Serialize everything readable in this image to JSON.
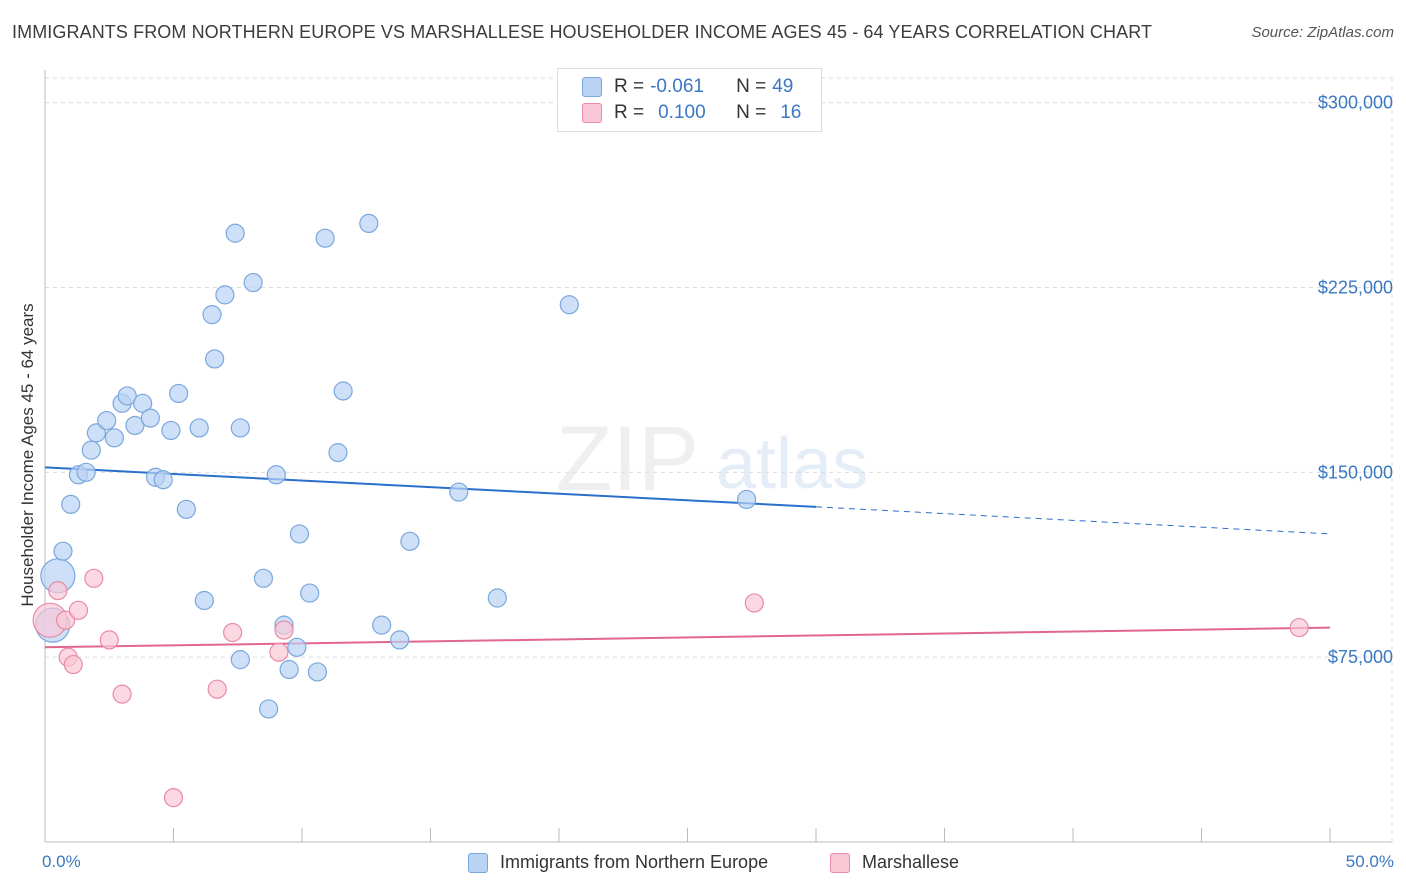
{
  "title": "IMMIGRANTS FROM NORTHERN EUROPE VS MARSHALLESE HOUSEHOLDER INCOME AGES 45 - 64 YEARS CORRELATION CHART",
  "source": "Source: ZipAtlas.com",
  "watermark": {
    "zip": "ZIP",
    "atlas": "atlas"
  },
  "legend_top": [
    {
      "r_label": "R = ",
      "r_value": "-0.061",
      "n_label": "N = ",
      "n_value": "49"
    },
    {
      "r_label": "R = ",
      "r_value": "0.100",
      "n_label": "N = ",
      "n_value": "16"
    }
  ],
  "colors": {
    "blue_fill": "#b9d3f3",
    "blue_stroke": "#7aa7dd",
    "blue_line": "#2a6fc9",
    "pink_fill": "#f9c7d6",
    "pink_stroke": "#e98aa8",
    "pink_line": "#e0668f",
    "axis_label": "#3b78c3",
    "grid": "#dcdcdc"
  },
  "chart_data": {
    "type": "scatter",
    "title": "IMMIGRANTS FROM NORTHERN EUROPE VS MARSHALLESE HOUSEHOLDER INCOME AGES 45 - 64 YEARS CORRELATION CHART",
    "xlabel": "",
    "ylabel": "Householder Income Ages 45 - 64 years",
    "xlim": [
      0,
      50
    ],
    "ylim": [
      0,
      310000
    ],
    "x_tick_labels": [
      "0.0%",
      "50.0%"
    ],
    "y_ticks": [
      75000,
      150000,
      225000,
      300000
    ],
    "y_tick_labels": [
      "$75,000",
      "$150,000",
      "$225,000",
      "$300,000"
    ],
    "grid": true,
    "legend_position": "top-center",
    "series": [
      {
        "name": "Immigrants from Northern Europe",
        "color": "#b9d3f3",
        "R": -0.061,
        "N": 49,
        "points": [
          {
            "x": 0.3,
            "y": 88000,
            "big": true
          },
          {
            "x": 0.5,
            "y": 108000,
            "big": true
          },
          {
            "x": 0.7,
            "y": 118000
          },
          {
            "x": 1.0,
            "y": 137000
          },
          {
            "x": 1.3,
            "y": 149000
          },
          {
            "x": 1.6,
            "y": 150000
          },
          {
            "x": 1.8,
            "y": 159000
          },
          {
            "x": 2.0,
            "y": 166000
          },
          {
            "x": 2.4,
            "y": 171000
          },
          {
            "x": 2.7,
            "y": 164000
          },
          {
            "x": 3.0,
            "y": 178000
          },
          {
            "x": 3.2,
            "y": 181000
          },
          {
            "x": 3.5,
            "y": 169000
          },
          {
            "x": 3.8,
            "y": 178000
          },
          {
            "x": 4.1,
            "y": 172000
          },
          {
            "x": 4.3,
            "y": 148000
          },
          {
            "x": 4.6,
            "y": 147000
          },
          {
            "x": 4.9,
            "y": 167000
          },
          {
            "x": 5.2,
            "y": 182000
          },
          {
            "x": 5.5,
            "y": 135000
          },
          {
            "x": 6.0,
            "y": 168000
          },
          {
            "x": 6.2,
            "y": 98000
          },
          {
            "x": 6.5,
            "y": 214000
          },
          {
            "x": 6.6,
            "y": 196000
          },
          {
            "x": 7.0,
            "y": 222000
          },
          {
            "x": 7.4,
            "y": 247000
          },
          {
            "x": 7.6,
            "y": 168000
          },
          {
            "x": 7.6,
            "y": 74000
          },
          {
            "x": 8.1,
            "y": 227000
          },
          {
            "x": 8.5,
            "y": 107000
          },
          {
            "x": 8.7,
            "y": 54000
          },
          {
            "x": 9.0,
            "y": 149000
          },
          {
            "x": 9.3,
            "y": 88000
          },
          {
            "x": 9.5,
            "y": 70000
          },
          {
            "x": 9.8,
            "y": 79000
          },
          {
            "x": 9.9,
            "y": 125000
          },
          {
            "x": 10.3,
            "y": 101000
          },
          {
            "x": 10.6,
            "y": 69000
          },
          {
            "x": 10.9,
            "y": 245000
          },
          {
            "x": 11.4,
            "y": 158000
          },
          {
            "x": 11.6,
            "y": 183000
          },
          {
            "x": 12.6,
            "y": 251000
          },
          {
            "x": 13.1,
            "y": 88000
          },
          {
            "x": 13.8,
            "y": 82000
          },
          {
            "x": 14.2,
            "y": 122000
          },
          {
            "x": 16.1,
            "y": 142000
          },
          {
            "x": 17.6,
            "y": 99000
          },
          {
            "x": 20.4,
            "y": 218000
          },
          {
            "x": 27.3,
            "y": 139000
          }
        ],
        "trend": {
          "x0": 0,
          "y0": 152000,
          "x1": 30.0,
          "y1": 136000,
          "dashed_to_x": 50,
          "dashed_to_y": 125000
        }
      },
      {
        "name": "Marshallese",
        "color": "#f9c7d6",
        "R": 0.1,
        "N": 16,
        "points": [
          {
            "x": 0.2,
            "y": 90000,
            "big": true
          },
          {
            "x": 0.5,
            "y": 102000
          },
          {
            "x": 0.8,
            "y": 90000
          },
          {
            "x": 0.9,
            "y": 75000
          },
          {
            "x": 1.1,
            "y": 72000
          },
          {
            "x": 1.3,
            "y": 94000
          },
          {
            "x": 1.9,
            "y": 107000
          },
          {
            "x": 2.5,
            "y": 82000
          },
          {
            "x": 3.0,
            "y": 60000
          },
          {
            "x": 5.0,
            "y": 18000
          },
          {
            "x": 6.7,
            "y": 62000
          },
          {
            "x": 7.3,
            "y": 85000
          },
          {
            "x": 9.1,
            "y": 77000
          },
          {
            "x": 9.3,
            "y": 86000
          },
          {
            "x": 27.6,
            "y": 97000
          },
          {
            "x": 48.8,
            "y": 87000
          }
        ],
        "trend": {
          "x0": 0,
          "y0": 79000,
          "x1": 50,
          "y1": 87000
        }
      }
    ]
  },
  "bottom_legend": [
    "Immigrants from Northern Europe",
    "Marshallese"
  ]
}
